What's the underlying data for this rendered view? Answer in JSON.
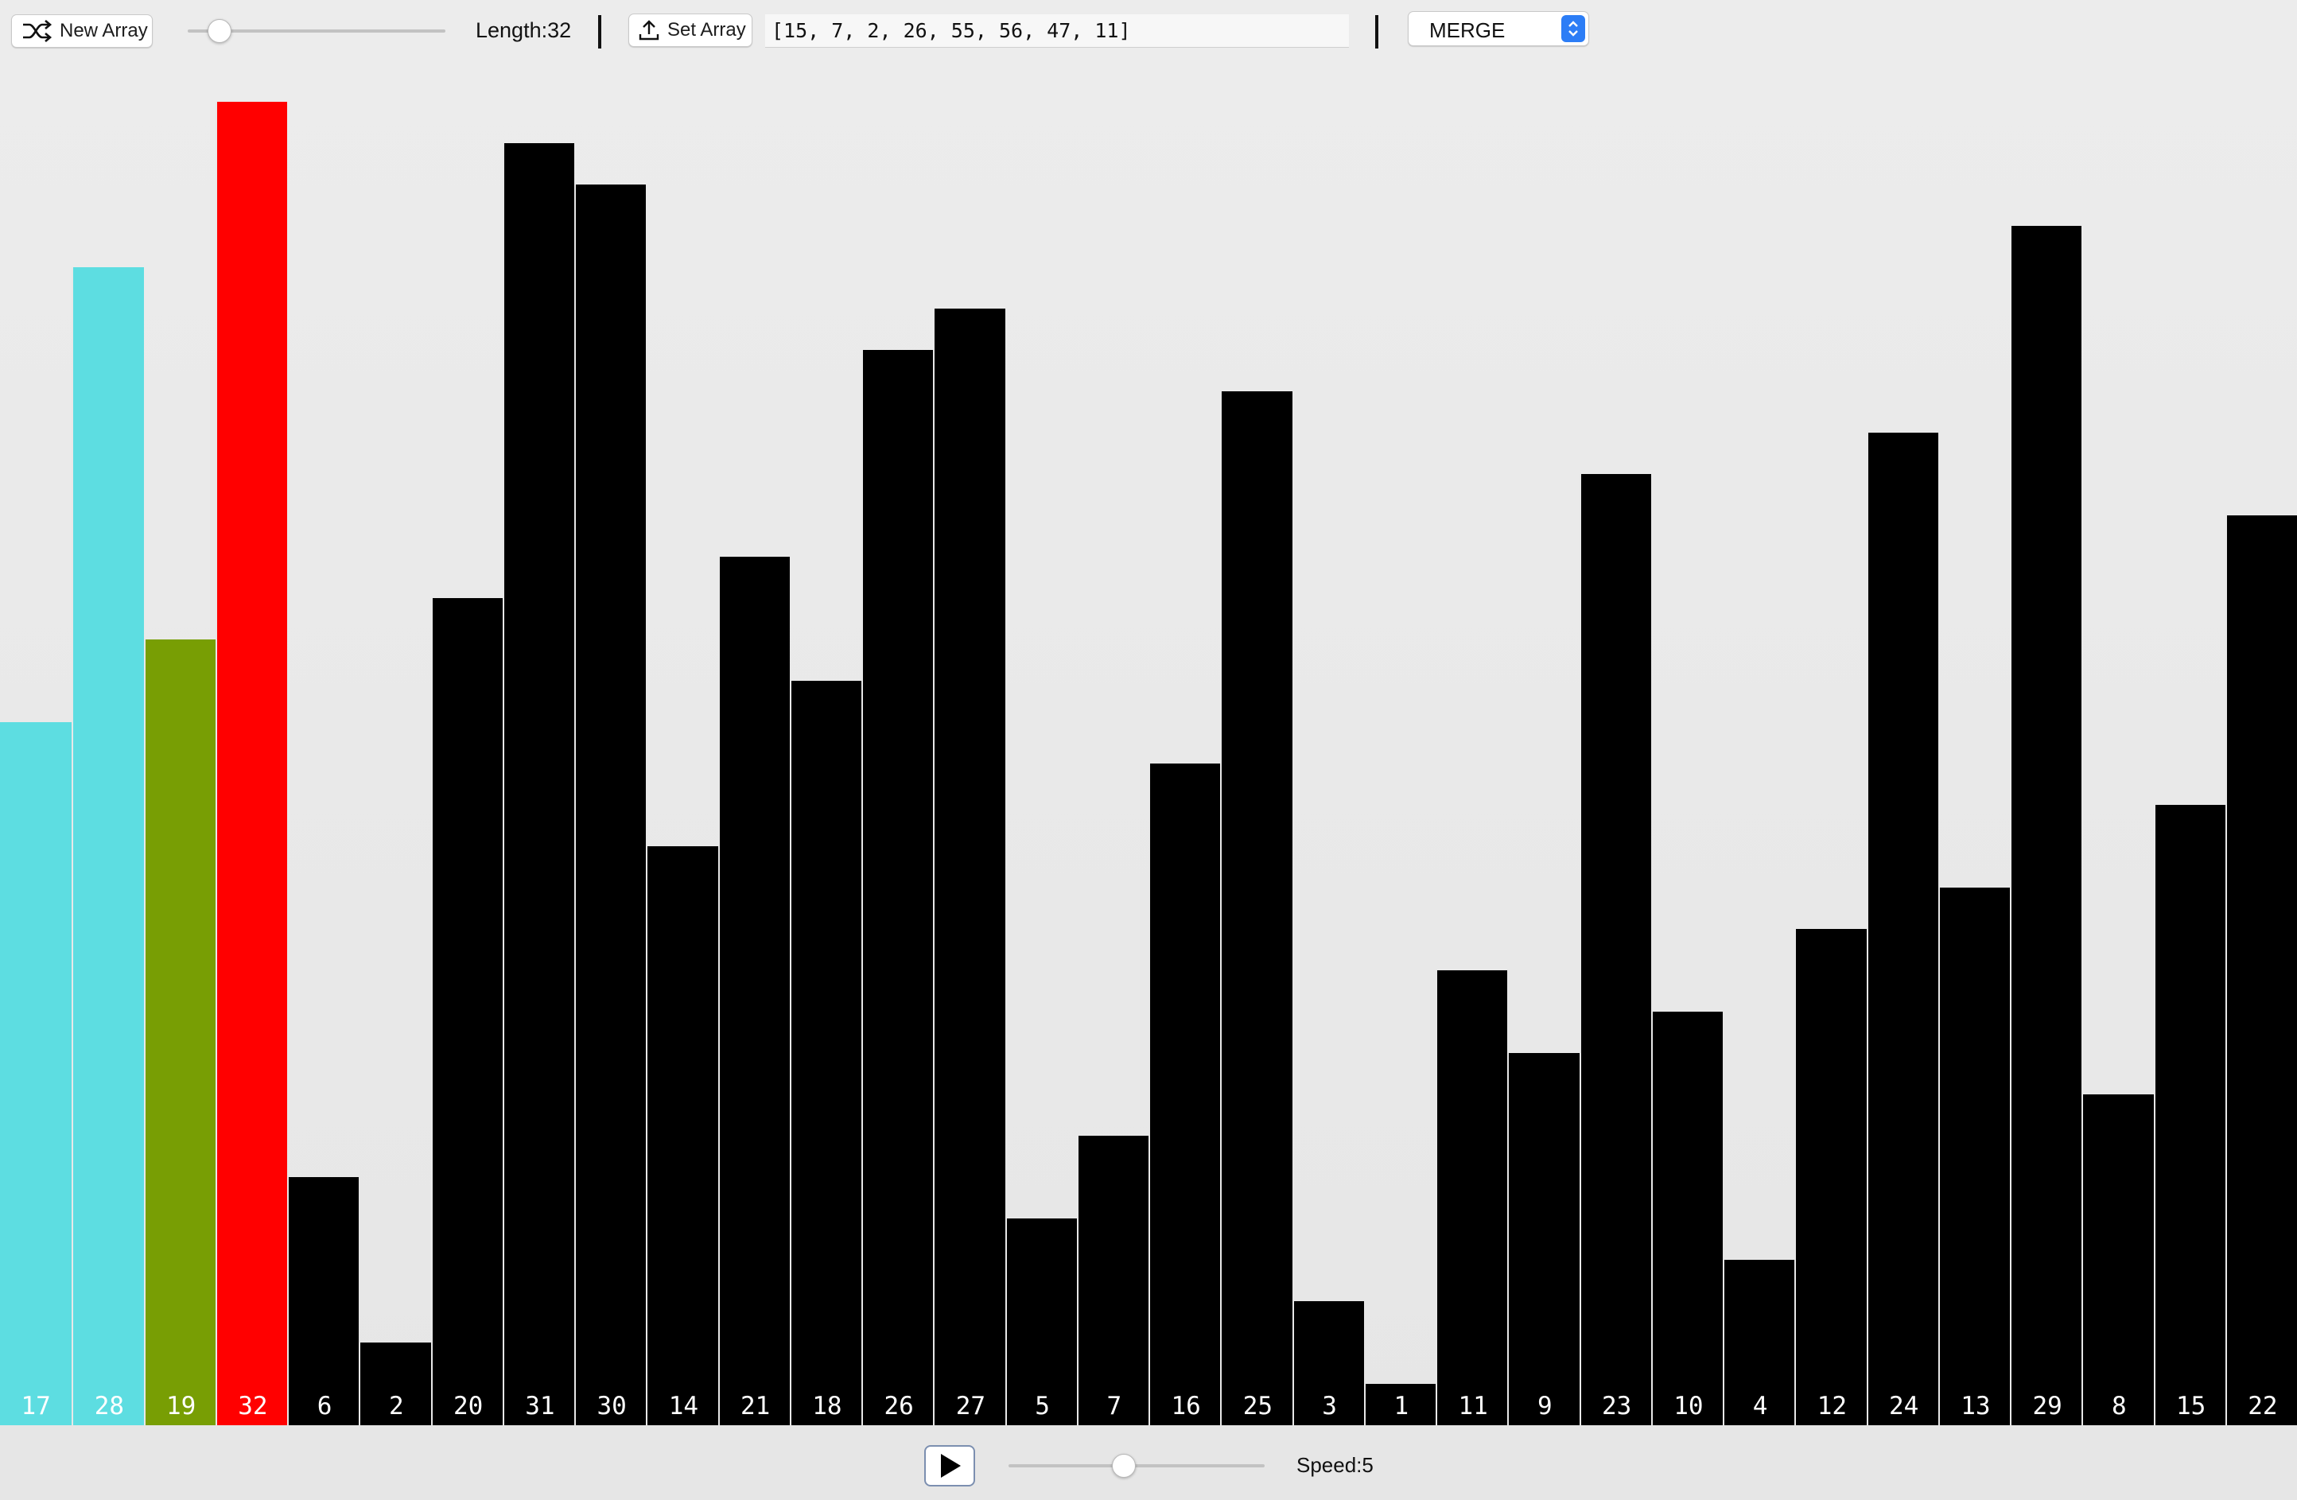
{
  "toolbar": {
    "new_array_label": "New Array",
    "length_label": "Length:32",
    "length_value": 32,
    "set_array_label": "Set Array",
    "array_input_value": "[15, 7, 2, 26, 55, 56, 47, 11]",
    "algorithm_selected": "MERGE"
  },
  "controls": {
    "speed_label": "Speed:5",
    "speed_value": 5
  },
  "colors": {
    "default": "#000000",
    "cyan": "#5ddde1",
    "green": "#789e04",
    "red": "#ff0000",
    "label": "#ffffff"
  },
  "bars": [
    {
      "value": 17,
      "color": "cyan"
    },
    {
      "value": 28,
      "color": "cyan"
    },
    {
      "value": 19,
      "color": "green"
    },
    {
      "value": 32,
      "color": "red"
    },
    {
      "value": 6,
      "color": "default"
    },
    {
      "value": 2,
      "color": "default"
    },
    {
      "value": 20,
      "color": "default"
    },
    {
      "value": 31,
      "color": "default"
    },
    {
      "value": 30,
      "color": "default"
    },
    {
      "value": 14,
      "color": "default"
    },
    {
      "value": 21,
      "color": "default"
    },
    {
      "value": 18,
      "color": "default"
    },
    {
      "value": 26,
      "color": "default"
    },
    {
      "value": 27,
      "color": "default"
    },
    {
      "value": 5,
      "color": "default"
    },
    {
      "value": 7,
      "color": "default"
    },
    {
      "value": 16,
      "color": "default"
    },
    {
      "value": 25,
      "color": "default"
    },
    {
      "value": 3,
      "color": "default"
    },
    {
      "value": 1,
      "color": "default"
    },
    {
      "value": 11,
      "color": "default"
    },
    {
      "value": 9,
      "color": "default"
    },
    {
      "value": 23,
      "color": "default"
    },
    {
      "value": 10,
      "color": "default"
    },
    {
      "value": 4,
      "color": "default"
    },
    {
      "value": 12,
      "color": "default"
    },
    {
      "value": 24,
      "color": "default"
    },
    {
      "value": 13,
      "color": "default"
    },
    {
      "value": 29,
      "color": "default"
    },
    {
      "value": 8,
      "color": "default"
    },
    {
      "value": 15,
      "color": "default"
    },
    {
      "value": 22,
      "color": "default"
    }
  ]
}
